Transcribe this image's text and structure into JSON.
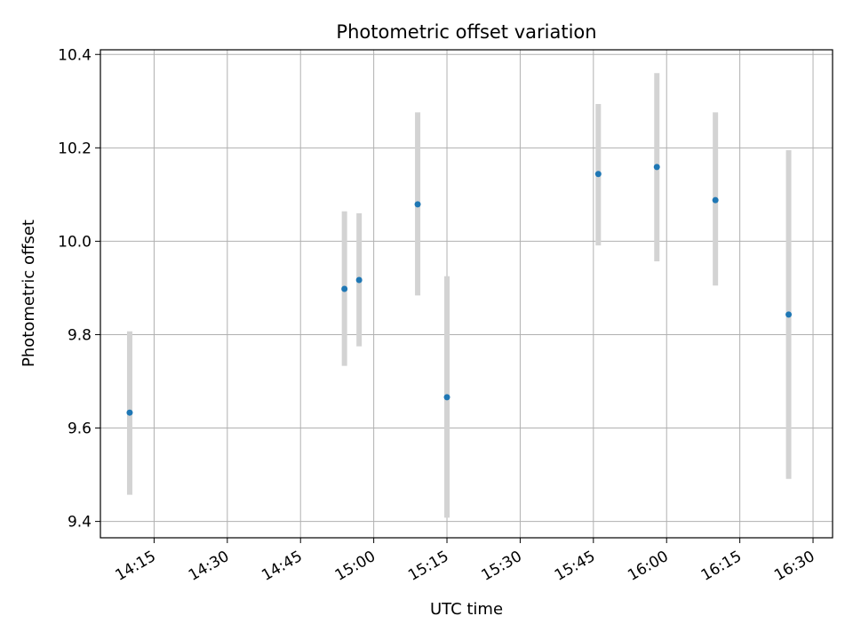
{
  "chart_data": {
    "type": "scatter",
    "title": "Photometric offset variation",
    "xlabel": "UTC time",
    "ylabel": "Photometric offset",
    "x_tick_labels": [
      "14:15",
      "14:30",
      "14:45",
      "15:00",
      "15:15",
      "15:30",
      "15:45",
      "16:00",
      "16:15",
      "16:30"
    ],
    "y_tick_labels": [
      "9.4",
      "9.6",
      "9.8",
      "10.0",
      "10.2",
      "10.4"
    ],
    "xlim": [
      "14:04",
      "16:34"
    ],
    "ylim": [
      9.365,
      10.41
    ],
    "grid": true,
    "colors": {
      "point": "#1f77b4",
      "errorbar": "#d3d3d3",
      "grid": "#b0b0b0"
    },
    "series": [
      {
        "x": [
          "14:10",
          "14:54",
          "14:57",
          "15:09",
          "15:15",
          "15:46",
          "15:58",
          "16:10",
          "16:25"
        ],
        "y": [
          9.633,
          9.898,
          9.917,
          10.079,
          9.666,
          10.144,
          10.159,
          10.088,
          9.843
        ],
        "yerr_low": [
          9.457,
          9.733,
          9.775,
          9.884,
          9.408,
          9.991,
          9.957,
          9.905,
          9.491
        ],
        "yerr_high": [
          9.807,
          10.064,
          10.06,
          10.276,
          9.925,
          10.294,
          10.36,
          10.276,
          10.195
        ]
      }
    ]
  }
}
